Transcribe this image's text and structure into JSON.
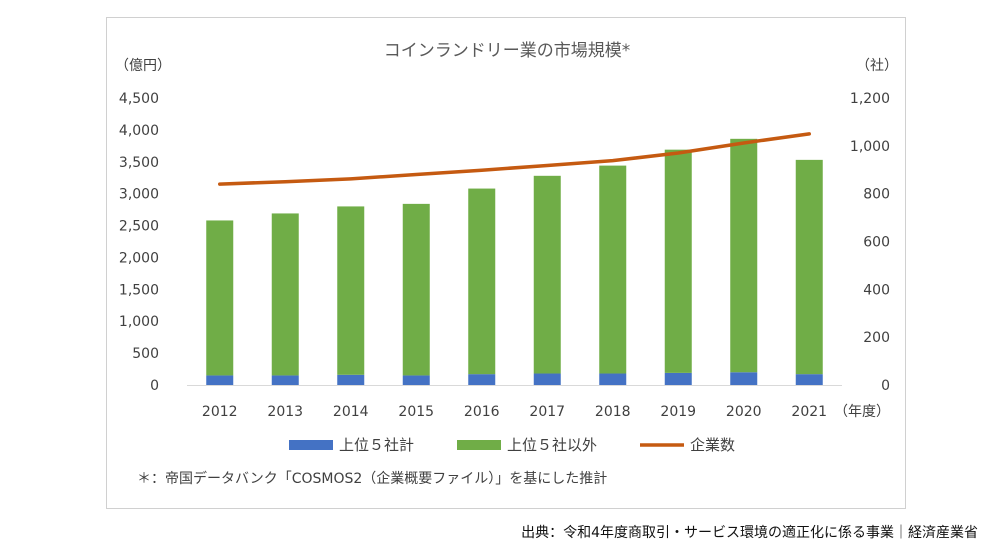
{
  "chart_data": {
    "type": "bar",
    "title": "コインランドリー業の市場規模*",
    "xlabel": "（年度）",
    "ylabel_left": "（億円）",
    "ylabel_right": "（社）",
    "categories": [
      "2012",
      "2013",
      "2014",
      "2015",
      "2016",
      "2017",
      "2018",
      "2019",
      "2020",
      "2021"
    ],
    "y_left_ticks": [
      "0",
      "500",
      "1,000",
      "1,500",
      "2,000",
      "2,500",
      "3,000",
      "3,500",
      "4,000",
      "4,500"
    ],
    "y_right_ticks": [
      "0",
      "200",
      "400",
      "600",
      "800",
      "1,000",
      "1,200"
    ],
    "ylim_left": [
      0,
      4500
    ],
    "ylim_right": [
      0,
      1200
    ],
    "stacked": true,
    "series": [
      {
        "name": "上位５社計",
        "axis": "left",
        "type": "bar",
        "color": "#4472C4",
        "values": [
          150,
          150,
          160,
          150,
          170,
          180,
          180,
          190,
          200,
          170
        ]
      },
      {
        "name": "上位５社以外",
        "axis": "left",
        "type": "bar",
        "color": "#70AD47",
        "values": [
          2430,
          2540,
          2640,
          2690,
          2910,
          3100,
          3260,
          3500,
          3660,
          3360
        ]
      },
      {
        "name": "企業数",
        "axis": "right",
        "type": "line",
        "color": "#C55A11",
        "values": [
          840,
          850,
          862,
          880,
          898,
          918,
          938,
          970,
          1012,
          1050
        ]
      }
    ],
    "footnote": "＊：帝国データバンク「COSMOS2（企業概要ファイル）」を基にした推計",
    "grid": false,
    "legend_position": "bottom"
  },
  "source": "出典：令和4年度商取引・サービス環境の適正化に係る事業｜経済産業省"
}
